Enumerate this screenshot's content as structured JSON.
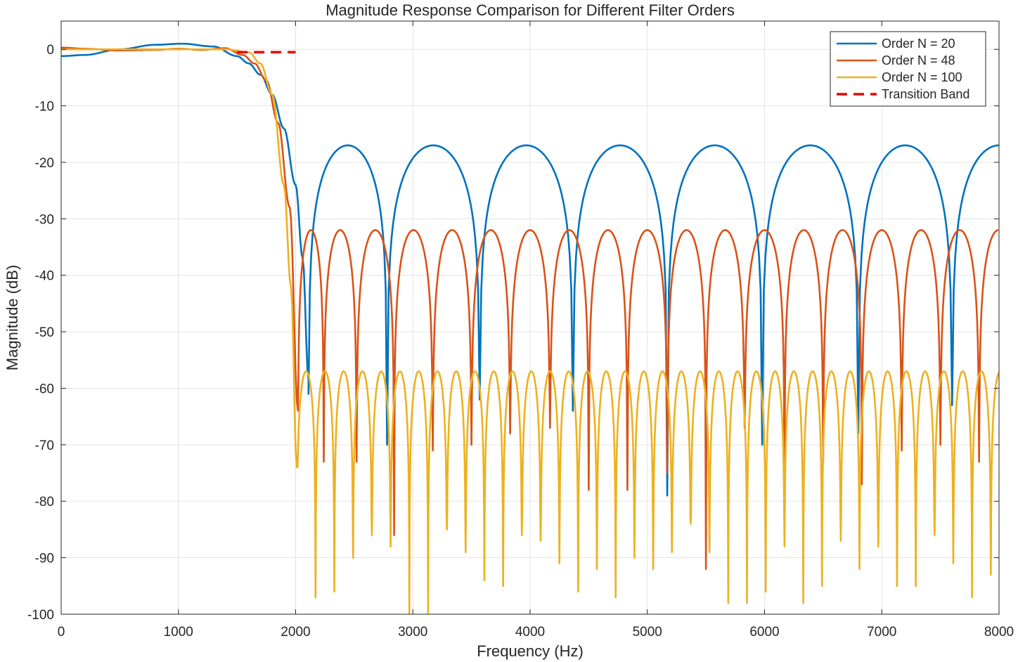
{
  "chart_data": {
    "type": "line",
    "title": "Magnitude Response Comparison for Different Filter Orders",
    "xlabel": "Frequency (Hz)",
    "ylabel": "Magnitude (dB)",
    "xlim": [
      0,
      8000
    ],
    "ylim": [
      -100,
      5
    ],
    "xticks": [
      0,
      1000,
      2000,
      3000,
      4000,
      5000,
      6000,
      7000,
      8000
    ],
    "yticks": [
      0,
      -10,
      -20,
      -30,
      -40,
      -50,
      -60,
      -70,
      -80,
      -90,
      -100
    ],
    "xtick_labels": [
      "0",
      "1000",
      "2000",
      "3000",
      "4000",
      "5000",
      "6000",
      "7000",
      "8000"
    ],
    "ytick_labels": [
      "0",
      "-10",
      "-20",
      "-30",
      "-40",
      "-50",
      "-60",
      "-70",
      "-80",
      "-90",
      "-100"
    ],
    "grid": true,
    "legend_position": "top-right",
    "series": [
      {
        "name": "Order N = 20",
        "color": "#0072BD",
        "style": "solid",
        "passband": {
          "x": [
            0,
            200,
            500,
            800,
            1030,
            1300,
            1500,
            1600
          ],
          "y": [
            -1.2,
            -1.0,
            0.0,
            0.8,
            1.0,
            0.5,
            -1.2,
            -2.5
          ]
        },
        "transition": {
          "x": [
            1600,
            1700,
            1800,
            1900,
            2000,
            2060,
            2110
          ],
          "y": [
            -2.5,
            -4.5,
            -8.0,
            -14,
            -24,
            -37,
            -58.5
          ]
        },
        "lobe_peaks": [
          2410,
          3175,
          3970,
          4770,
          5570,
          6375,
          7190,
          7990
        ],
        "lobe_peak_values": [
          -17,
          -17,
          -17,
          -17,
          -17,
          -17,
          -17,
          -17
        ],
        "nulls": [
          2110,
          2780,
          3570,
          4365,
          5170,
          5980,
          6800,
          7600
        ],
        "null_values": [
          -61,
          -70,
          -62,
          -64,
          -79,
          -70,
          -68,
          -63
        ]
      },
      {
        "name": "Order N = 48",
        "color": "#D95319",
        "style": "solid",
        "passband": {
          "x": [
            0,
            200,
            500,
            800,
            1000,
            1200,
            1400,
            1550
          ],
          "y": [
            0.3,
            0.1,
            -0.2,
            -0.1,
            0.1,
            -0.1,
            0.2,
            -1.0
          ]
        },
        "transition": {
          "x": [
            1550,
            1650,
            1750,
            1850,
            1950,
            2020
          ],
          "y": [
            -1.0,
            -2.5,
            -5.5,
            -13,
            -28,
            -64
          ]
        },
        "lobe_peaks": [
          2120,
          2360,
          2640,
          2990,
          3330,
          3660,
          3990,
          4330,
          4670,
          5010,
          5340,
          5680,
          6010,
          6340,
          6670,
          7010,
          7340,
          7680,
          7990
        ],
        "lobe_peak_values": [
          -32,
          -32,
          -32,
          -32,
          -32,
          -32,
          -32,
          -32,
          -32,
          -32,
          -32,
          -32,
          -32,
          -32,
          -32,
          -32,
          -32,
          -32,
          -32
        ],
        "nulls": [
          2020,
          2240,
          2520,
          2840,
          3170,
          3500,
          3830,
          4170,
          4500,
          4830,
          5170,
          5500,
          5830,
          6170,
          6500,
          6830,
          7170,
          7500,
          7830
        ],
        "null_values": [
          -64,
          -73,
          -73,
          -86,
          -71,
          -70,
          -68,
          -67,
          -78,
          -78,
          -75,
          -92,
          -67,
          -76,
          -73,
          -77,
          -71,
          -70,
          -73
        ]
      },
      {
        "name": "Order N = 100",
        "color": "#EDB120",
        "style": "solid",
        "passband": {
          "x": [
            0,
            300,
            600,
            900,
            1200,
            1400,
            1600
          ],
          "y": [
            0.0,
            0.0,
            0.0,
            0.0,
            0.0,
            0.0,
            -0.5
          ]
        },
        "transition": {
          "x": [
            1600,
            1700,
            1800,
            1900,
            1960,
            2010
          ],
          "y": [
            -0.5,
            -2.5,
            -8,
            -24,
            -42,
            -74
          ]
        },
        "lobe_period": 160,
        "lobe_start": 2010,
        "lobe_peak_value": -57,
        "null_values": [
          -74,
          -97,
          -96,
          -90,
          -86,
          -88,
          -100,
          -100,
          -85,
          -89,
          -94,
          -95,
          -86,
          -87,
          -91,
          -96,
          -92,
          -97,
          -90,
          -92,
          -89,
          -84,
          -89,
          -98,
          -98,
          -96,
          -88,
          -98,
          -95,
          -87,
          -92,
          -88,
          -95,
          -95,
          -86,
          -91,
          -97,
          -93,
          -90,
          -86
        ]
      },
      {
        "name": "Transition Band",
        "color": "#E8000B",
        "style": "dashed",
        "x": [
          1500,
          2000
        ],
        "y": [
          -0.5,
          -0.5
        ]
      }
    ]
  }
}
